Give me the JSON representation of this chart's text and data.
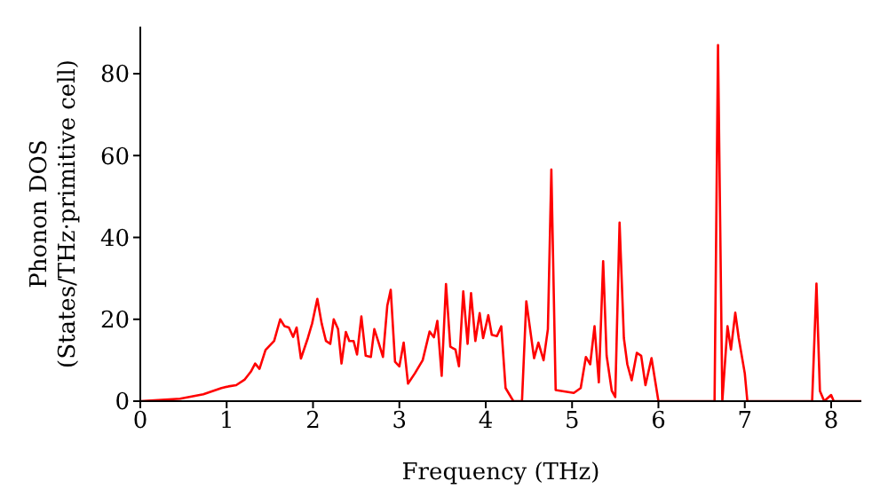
{
  "chart_data": {
    "type": "line",
    "xlabel": "Frequency (THz)",
    "ylabel": "Phonon DOS\n(States/THz·primitive cell)",
    "xlim": [
      0,
      8.35
    ],
    "xticks": [
      0,
      1,
      2,
      3,
      4,
      5,
      6,
      7,
      8
    ],
    "ylim": [
      0,
      91.5
    ],
    "yticks": [
      0,
      20,
      40,
      60,
      80
    ],
    "grid": false,
    "legend": false,
    "marker": "none",
    "line_style": "solid",
    "series": [
      {
        "color": "#ff0000",
        "x": [
          0,
          0.46,
          0.73,
          0.94,
          1.02,
          1.11,
          1.21,
          1.28,
          1.33,
          1.38,
          1.45,
          1.55,
          1.62,
          1.67,
          1.72,
          1.77,
          1.81,
          1.86,
          1.94,
          1.99,
          2.05,
          2.1,
          2.15,
          2.2,
          2.24,
          2.29,
          2.33,
          2.38,
          2.42,
          2.47,
          2.51,
          2.56,
          2.61,
          2.67,
          2.71,
          2.76,
          2.81,
          2.86,
          2.9,
          2.95,
          3.0,
          3.05,
          3.1,
          3.18,
          3.27,
          3.35,
          3.4,
          3.44,
          3.49,
          3.54,
          3.59,
          3.65,
          3.69,
          3.74,
          3.79,
          3.83,
          3.88,
          3.93,
          3.97,
          4.03,
          4.07,
          4.13,
          4.18,
          4.23,
          4.32,
          4.42,
          4.47,
          4.56,
          4.61,
          4.67,
          4.72,
          4.76,
          4.81,
          5.02,
          5.1,
          5.16,
          5.21,
          5.26,
          5.31,
          5.36,
          5.4,
          5.46,
          5.5,
          5.55,
          5.6,
          5.64,
          5.69,
          5.75,
          5.8,
          5.85,
          5.92,
          6.0,
          6.65,
          6.69,
          6.74,
          6.8,
          6.84,
          6.89,
          6.93,
          7.0,
          7.03,
          7.78,
          7.83,
          7.87,
          7.92,
          8.0,
          8.03,
          8.35
        ],
        "values": [
          0,
          0.6,
          1.7,
          3.2,
          3.6,
          3.9,
          5.3,
          7.2,
          9.2,
          7.9,
          12.5,
          14.7,
          20,
          18.3,
          18,
          15.7,
          18,
          10.4,
          15.4,
          19,
          25,
          19,
          14.7,
          14,
          20,
          17.6,
          9.2,
          16.9,
          14.7,
          14.7,
          11.4,
          20.7,
          11.1,
          10.8,
          17.6,
          14.3,
          10.8,
          23.3,
          27.2,
          9.6,
          8.5,
          14.3,
          4.3,
          6.8,
          10,
          17,
          15.6,
          19.6,
          6.2,
          28.6,
          13.3,
          12.6,
          8.5,
          26.8,
          14,
          26.4,
          14.7,
          21.5,
          15.4,
          21,
          16.2,
          15.9,
          18.3,
          3.2,
          0,
          0,
          24.4,
          10.5,
          14.3,
          10,
          17.6,
          56.6,
          2.7,
          2,
          3.2,
          10.8,
          9,
          18.3,
          4.6,
          34.2,
          11.1,
          2.5,
          1,
          43.6,
          15.4,
          9,
          5.1,
          11.8,
          11.1,
          3.9,
          10.5,
          0,
          0,
          87,
          0,
          18.3,
          12.6,
          21.6,
          15.4,
          6.8,
          0,
          0,
          28.7,
          2.5,
          0,
          1.5,
          0,
          0
        ]
      }
    ]
  }
}
